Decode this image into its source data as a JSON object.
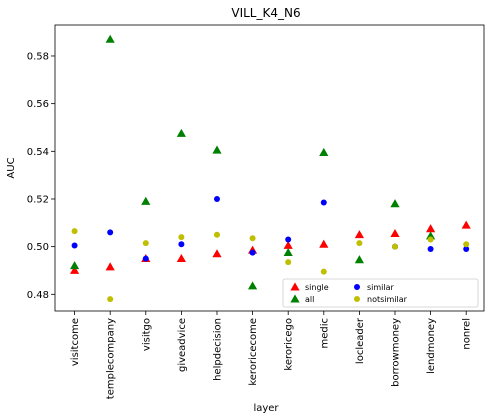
{
  "chart_data": {
    "type": "scatter",
    "title": "VILL_K4_N6",
    "xlabel": "layer",
    "ylabel": "AUC",
    "categories": [
      "visitcome",
      "templecompany",
      "visitgo",
      "giveadvice",
      "helpdecision",
      "keroricecome",
      "keroricego",
      "medic",
      "locleader",
      "borrowmoney",
      "lendmoney",
      "nonrel"
    ],
    "ylim": [
      0.473,
      0.593
    ],
    "yticks": [
      0.48,
      0.5,
      0.52,
      0.54,
      0.56,
      0.58
    ],
    "ytick_labels": [
      "0.48",
      "0.50",
      "0.52",
      "0.54",
      "0.56",
      "0.58"
    ],
    "grid": false,
    "legend": {
      "placement": "lower-right",
      "ncol": 3
    },
    "series": [
      {
        "name": "single",
        "marker": "triangle",
        "color": "#ff0000",
        "values": [
          0.49,
          0.4915,
          0.495,
          0.495,
          0.497,
          0.4985,
          0.5005,
          0.501,
          0.505,
          0.5055,
          0.5075,
          0.509
        ]
      },
      {
        "name": "all",
        "marker": "triangle",
        "color": "#008000",
        "values": [
          0.492,
          0.587,
          0.519,
          0.5475,
          0.5405,
          0.4835,
          0.4975,
          0.5395,
          0.4945,
          0.518,
          0.5045,
          null
        ]
      },
      {
        "name": "similar",
        "marker": "circle",
        "color": "#0000ff",
        "values": [
          0.5005,
          0.506,
          0.495,
          0.501,
          0.52,
          0.4975,
          0.503,
          0.5185,
          null,
          0.5,
          0.499,
          0.499
        ]
      },
      {
        "name": "notsimilar",
        "marker": "circle",
        "color": "#bfbf00",
        "values": [
          0.5065,
          0.478,
          0.5015,
          0.504,
          0.505,
          0.5035,
          0.4935,
          0.4895,
          0.5015,
          0.5,
          0.503,
          0.501
        ]
      }
    ]
  }
}
